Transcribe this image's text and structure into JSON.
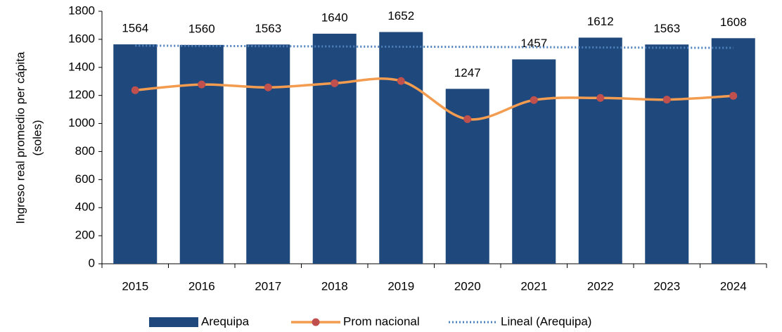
{
  "chart_data": {
    "type": "bar-line",
    "ylabel": [
      "Ingreso real promedio per cápita",
      "(soles)"
    ],
    "categories": [
      "2015",
      "2016",
      "2017",
      "2018",
      "2019",
      "2020",
      "2021",
      "2022",
      "2023",
      "2024"
    ],
    "series": [
      {
        "name": "Arequipa",
        "type": "bar",
        "color": "#1f497d",
        "values": [
          1564,
          1560,
          1563,
          1640,
          1652,
          1247,
          1457,
          1612,
          1563,
          1608
        ]
      },
      {
        "name": "Prom nacional",
        "type": "line",
        "color": "#f39c4f",
        "marker_color": "#c0504d",
        "values": [
          1237,
          1278,
          1257,
          1287,
          1303,
          1031,
          1167,
          1182,
          1170,
          1197
        ]
      },
      {
        "name": "Lineal (Arequipa)",
        "type": "trend",
        "color": "#4f81bd",
        "values": [
          1555,
          1553,
          1551,
          1549,
          1547,
          1546,
          1544,
          1542,
          1540,
          1539
        ]
      }
    ],
    "ylim": [
      0,
      1800
    ],
    "yticks": [
      0,
      200,
      400,
      600,
      800,
      1000,
      1200,
      1400,
      1600,
      1800
    ],
    "grid": false,
    "legend": "bottom"
  }
}
